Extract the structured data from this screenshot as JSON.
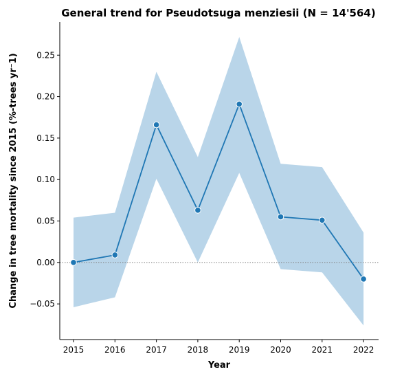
{
  "chart_data": {
    "type": "line",
    "title": "General trend for Pseudotsuga menziesii  (N = 14'564)",
    "xlabel": "Year",
    "ylabel": "Change in tree mortality since 2015 (%-trees yr⁻1)",
    "x": [
      "2015",
      "2016",
      "2017",
      "2018",
      "2019",
      "2020",
      "2021",
      "2022"
    ],
    "series": [
      {
        "values": [
          0.0,
          0.009,
          0.166,
          0.063,
          0.191,
          0.055,
          0.051,
          -0.02
        ],
        "ci_lower": [
          -0.054,
          -0.042,
          0.101,
          0.0,
          0.108,
          -0.008,
          -0.012,
          -0.076
        ],
        "ci_upper": [
          0.054,
          0.06,
          0.23,
          0.127,
          0.272,
          0.119,
          0.115,
          0.036
        ]
      }
    ],
    "yticks": [
      -0.05,
      0.0,
      0.05,
      0.1,
      0.15,
      0.2,
      0.25
    ],
    "ytick_labels": [
      "−0.05",
      "0.00",
      "0.05",
      "0.10",
      "0.15",
      "0.20",
      "0.25"
    ],
    "ylim": [
      -0.093,
      0.29
    ],
    "reference_line": 0.0,
    "grid": false,
    "colors": {
      "line": "#1f77b4",
      "band": "#b9d5e9",
      "reference": "#808080"
    }
  }
}
